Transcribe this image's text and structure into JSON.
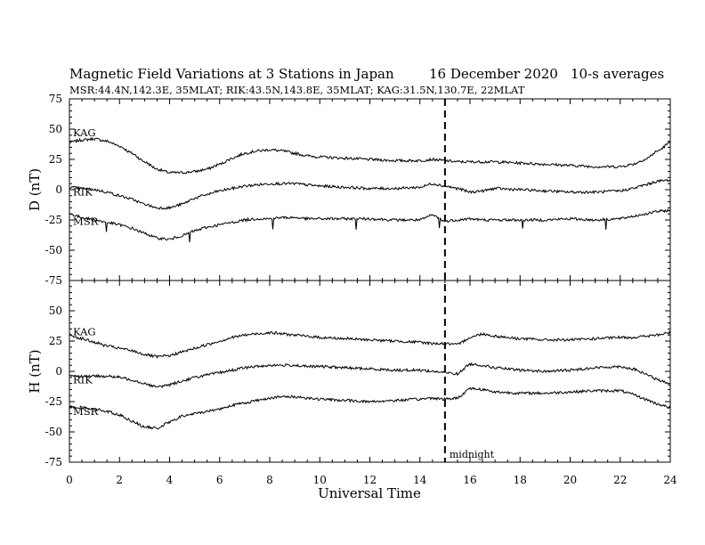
{
  "header": {
    "title": "Magnetic Field Variations at 3 Stations in Japan",
    "date": "16 December 2020",
    "averaging": "10-s averages",
    "stations_line": "MSR:44.4N,142.3E, 35MLAT;  RIK:43.5N,143.8E, 35MLAT;  KAG:31.5N,130.7E, 22MLAT"
  },
  "chart_data": [
    {
      "type": "line",
      "panel": "D",
      "ylabel": "D (nT)",
      "ylim": [
        -75,
        75
      ],
      "yticks": [
        75,
        50,
        25,
        0,
        -25,
        -50,
        -75
      ],
      "xlim": [
        0,
        24
      ],
      "grid": false,
      "series": [
        {
          "name": "KAG",
          "x": [
            0,
            0.5,
            1,
            1.5,
            2,
            2.5,
            3,
            3.5,
            4,
            4.5,
            5,
            5.5,
            6,
            6.5,
            7,
            7.5,
            8,
            8.5,
            9,
            9.5,
            10,
            11,
            12,
            13,
            14,
            14.5,
            15,
            15.5,
            16,
            16.5,
            17,
            18,
            19,
            20,
            21,
            22,
            22.5,
            23,
            23.5,
            24
          ],
          "values": [
            39,
            41,
            42,
            40,
            36,
            30,
            23,
            17,
            14,
            14,
            15,
            17,
            21,
            26,
            30,
            32,
            33,
            32,
            30,
            28,
            27,
            26,
            25,
            24,
            24,
            25,
            24,
            23,
            23,
            23,
            23,
            22,
            21,
            20,
            19,
            19,
            21,
            25,
            32,
            39
          ]
        },
        {
          "name": "RIK",
          "x": [
            0,
            0.5,
            1,
            1.5,
            2,
            2.5,
            3,
            3.5,
            4,
            4.5,
            5,
            5.5,
            6,
            6.5,
            7,
            7.5,
            8,
            8.5,
            9,
            9.5,
            10,
            11,
            12,
            13,
            14,
            14.5,
            15,
            15.5,
            16,
            16.5,
            17,
            18,
            19,
            20,
            21,
            22,
            22.5,
            23,
            23.5,
            24
          ],
          "values": [
            2,
            1,
            0,
            -2,
            -5,
            -8,
            -12,
            -15,
            -15,
            -12,
            -7,
            -4,
            -1,
            1,
            3,
            4,
            5,
            5,
            5,
            4,
            3,
            2,
            1,
            1,
            2,
            5,
            3,
            1,
            -2,
            -1,
            1,
            0,
            -1,
            -2,
            -2,
            -1,
            1,
            4,
            7,
            8
          ]
        },
        {
          "name": "MSR",
          "x": [
            0,
            0.5,
            1,
            1.5,
            2,
            2.5,
            3,
            3.5,
            4,
            4.5,
            5,
            5.5,
            6,
            6.5,
            7,
            7.5,
            8,
            8.5,
            9,
            9.5,
            10,
            11,
            12,
            13,
            14,
            14.5,
            15,
            15.5,
            16,
            16.5,
            17,
            18,
            19,
            20,
            21,
            22,
            22.5,
            23,
            23.5,
            24
          ],
          "values": [
            -20,
            -23,
            -25,
            -27,
            -29,
            -32,
            -36,
            -40,
            -41,
            -38,
            -34,
            -31,
            -29,
            -27,
            -25,
            -24,
            -24,
            -23,
            -23,
            -24,
            -24,
            -24,
            -24,
            -25,
            -25,
            -21,
            -26,
            -25,
            -24,
            -25,
            -25,
            -25,
            -25,
            -24,
            -25,
            -24,
            -22,
            -20,
            -18,
            -17
          ]
        }
      ]
    },
    {
      "type": "line",
      "panel": "H",
      "ylabel": "H (nT)",
      "xlabel": "Universal Time",
      "ylim": [
        -75,
        75
      ],
      "yticks": [
        75,
        50,
        25,
        0,
        -25,
        -50,
        -75
      ],
      "xlim": [
        0,
        24
      ],
      "xticks": [
        0,
        2,
        4,
        6,
        8,
        10,
        12,
        14,
        16,
        18,
        20,
        22,
        24
      ],
      "grid": false,
      "series": [
        {
          "name": "KAG",
          "x": [
            0,
            0.5,
            1,
            1.5,
            2,
            2.5,
            3,
            3.5,
            4,
            4.5,
            5,
            5.5,
            6,
            6.5,
            7,
            7.5,
            8,
            8.5,
            9,
            9.5,
            10,
            11,
            12,
            13,
            14,
            14.5,
            15,
            15.5,
            16,
            16.5,
            17,
            18,
            19,
            20,
            21,
            22,
            22.5,
            23,
            23.5,
            24
          ],
          "values": [
            30,
            27,
            24,
            21,
            19,
            17,
            14,
            12,
            13,
            16,
            19,
            22,
            25,
            28,
            30,
            31,
            32,
            31,
            30,
            29,
            28,
            27,
            26,
            25,
            24,
            23,
            23,
            22,
            28,
            31,
            29,
            27,
            26,
            26,
            27,
            28,
            28,
            29,
            30,
            32
          ]
        },
        {
          "name": "RIK",
          "x": [
            0,
            0.5,
            1,
            1.5,
            2,
            2.5,
            3,
            3.5,
            4,
            4.5,
            5,
            5.5,
            6,
            6.5,
            7,
            7.5,
            8,
            8.5,
            9,
            9.5,
            10,
            11,
            12,
            13,
            14,
            14.5,
            15,
            15.5,
            16,
            16.5,
            17,
            18,
            19,
            20,
            21,
            22,
            22.5,
            23,
            23.5,
            24
          ],
          "values": [
            -3,
            -4,
            -4,
            -4,
            -5,
            -7,
            -10,
            -13,
            -11,
            -8,
            -5,
            -3,
            -1,
            1,
            3,
            4,
            5,
            5,
            5,
            4,
            4,
            3,
            2,
            1,
            1,
            0,
            -1,
            -2,
            6,
            5,
            3,
            1,
            0,
            1,
            3,
            4,
            2,
            -2,
            -7,
            -11
          ]
        },
        {
          "name": "MSR",
          "x": [
            0,
            0.5,
            1,
            1.5,
            2,
            2.5,
            3,
            3.5,
            4,
            4.5,
            5,
            5.5,
            6,
            6.5,
            7,
            7.5,
            8,
            8.5,
            9,
            9.5,
            10,
            11,
            12,
            13,
            14,
            14.5,
            15,
            15.5,
            16,
            16.5,
            17,
            18,
            19,
            20,
            21,
            22,
            22.5,
            23,
            23.5,
            24
          ],
          "values": [
            -29,
            -30,
            -31,
            -33,
            -36,
            -41,
            -46,
            -47,
            -42,
            -37,
            -35,
            -33,
            -31,
            -28,
            -26,
            -24,
            -22,
            -21,
            -21,
            -22,
            -23,
            -24,
            -25,
            -24,
            -23,
            -22,
            -23,
            -22,
            -14,
            -15,
            -17,
            -18,
            -18,
            -17,
            -16,
            -16,
            -19,
            -23,
            -27,
            -30
          ]
        }
      ]
    }
  ],
  "annotations": {
    "midnight_label": "midnight",
    "midnight_ut": 15
  }
}
